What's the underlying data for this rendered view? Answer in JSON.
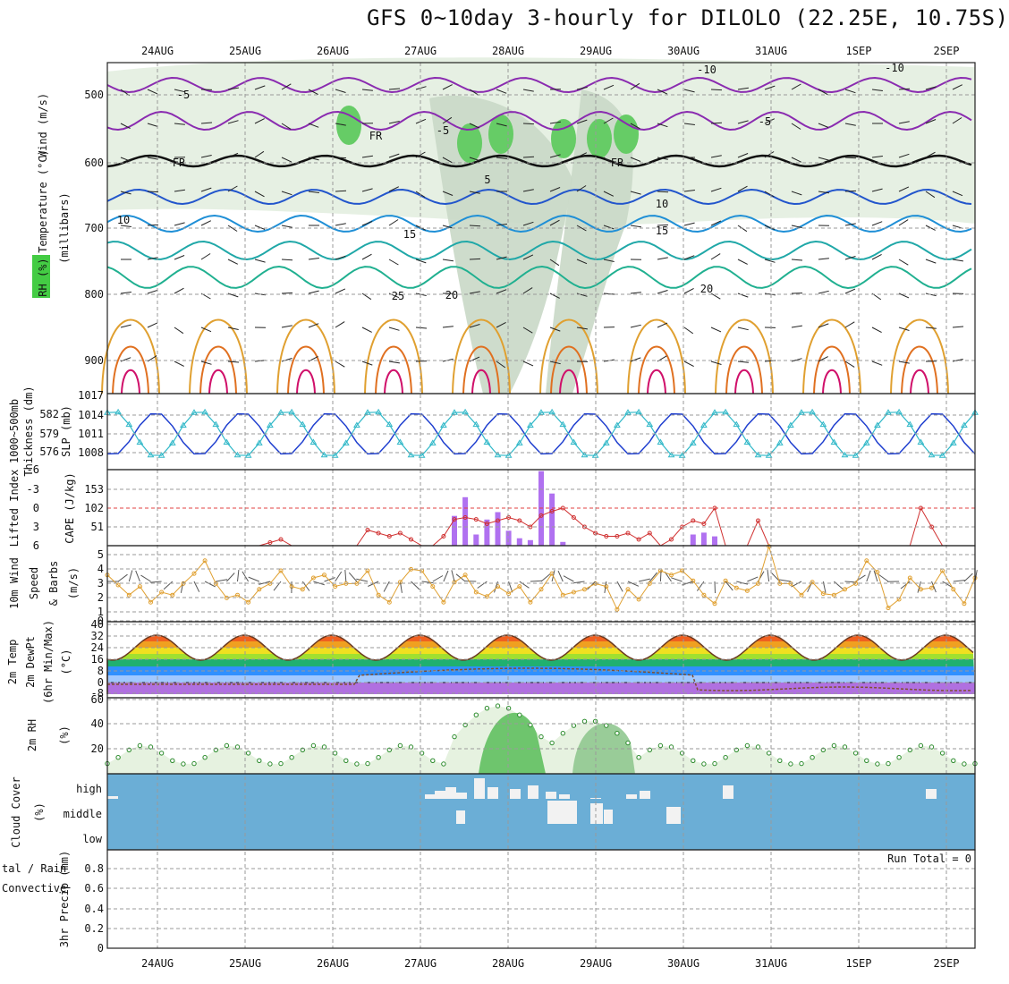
{
  "title": "GFS 0~10day 3-hourly for DILOLO (22.25E, 10.75S)",
  "dates": [
    "24AUG",
    "25AUG",
    "26AUG",
    "27AUG",
    "28AUG",
    "29AUG",
    "30AUG",
    "31AUG",
    "1SEP",
    "2SEP"
  ],
  "colors": {
    "grid": "#9a9a9a",
    "cloud": "#6baed6",
    "rh_fill": "#e6f2e0",
    "rh_green": "#66cc66"
  },
  "panels": {
    "pressure": {
      "labels": [
        "Wind (m/s)",
        "Temperature (°C)",
        "RH (%)",
        "(millibars)"
      ],
      "ticks": [
        "500",
        "600",
        "700",
        "800",
        "900"
      ],
      "contour_labels": [
        "-10",
        "-5",
        "-5",
        "-5",
        "-10",
        "5",
        "10",
        "10",
        "15",
        "15",
        "20",
        "20",
        "25",
        "FR",
        "FR",
        "FR"
      ]
    },
    "slp": {
      "left_labels": [
        "1000~500mb",
        "Thickness (dm)"
      ],
      "right_label": "SLP (mb)",
      "left_ticks": [
        "582",
        "579",
        "576"
      ],
      "right_ticks": [
        "1017",
        "1014",
        "1011",
        "1008"
      ]
    },
    "cape": {
      "left_label": "Lifted Index",
      "right_label": "CAPE (J/kg)",
      "li_ticks": [
        "-6",
        "-3",
        "0",
        "3",
        "6"
      ],
      "cape_ticks": [
        "153",
        "102",
        "51"
      ]
    },
    "wind": {
      "labels": [
        "10m Wind",
        "Speed",
        "& Barbs",
        "(m/s)"
      ],
      "ticks": [
        "5",
        "4",
        "3",
        "2",
        "1",
        "0"
      ]
    },
    "temp": {
      "labels": [
        "2m Temp",
        "2m DewPt",
        "(6hr Min/Max)",
        "(°C)"
      ],
      "ticks": [
        "40",
        "32",
        "24",
        "16",
        "8",
        "0",
        "-8"
      ]
    },
    "rh": {
      "labels": [
        "2m RH",
        "(%)"
      ],
      "ticks": [
        "60",
        "40",
        "20"
      ]
    },
    "cloud": {
      "labels": [
        "Cloud Cover",
        "(%)"
      ],
      "levels": [
        "high",
        "middle",
        "low"
      ]
    },
    "precip": {
      "labels": [
        "tal / Rain",
        "Convective",
        "3hr Precip (mm)"
      ],
      "ticks": [
        "0.8",
        "0.6",
        "0.4",
        "0.2",
        "0"
      ],
      "run_total": "Run Total = 0"
    }
  },
  "chart_data": {
    "type": "line",
    "x_dates": [
      "24AUG",
      "25AUG",
      "26AUG",
      "27AUG",
      "28AUG",
      "29AUG",
      "30AUG",
      "31AUG",
      "1SEP",
      "2SEP"
    ],
    "cape_jkg": [
      0,
      0,
      0,
      0,
      0,
      0,
      0,
      0,
      0,
      0,
      0,
      0,
      0,
      0,
      0,
      0,
      0,
      0,
      0,
      0,
      0,
      0,
      0,
      0,
      0,
      0,
      0,
      0,
      0,
      0,
      0,
      0,
      80,
      130,
      30,
      70,
      90,
      40,
      20,
      15,
      200,
      140,
      10,
      0,
      0,
      0,
      0,
      0,
      0,
      0,
      0,
      0,
      0,
      0,
      30,
      35,
      25,
      0,
      0,
      0,
      0,
      0,
      0,
      0,
      0,
      0,
      0,
      0,
      0,
      0,
      0,
      0,
      0,
      0,
      0,
      0,
      0,
      0,
      0,
      0,
      0
    ],
    "lifted_index": [
      6,
      6,
      6,
      6,
      6,
      6,
      6,
      6,
      6,
      6,
      6,
      6,
      6,
      6,
      6,
      5.5,
      5,
      6,
      6,
      6,
      6,
      6,
      6,
      6,
      3.5,
      4,
      4.5,
      4,
      5,
      6,
      6,
      4.5,
      1.8,
      1.5,
      1.8,
      2.5,
      2,
      1.5,
      2,
      3,
      1.2,
      0.5,
      0,
      1.5,
      3,
      4,
      4.5,
      4.5,
      4,
      5,
      4,
      6,
      5,
      3,
      2,
      2.5,
      0,
      6,
      6,
      6,
      2,
      6,
      6,
      6,
      6,
      6,
      6,
      6,
      6,
      6,
      6,
      6,
      6,
      6,
      6,
      0,
      3,
      6,
      6,
      6,
      6
    ],
    "wind_speed_ms": [
      3.2,
      2.5,
      1.8,
      2.4,
      1.3,
      2,
      1.8,
      2.6,
      3.3,
      4.2,
      2.6,
      1.6,
      1.8,
      1.3,
      2.2,
      2.6,
      3.5,
      2.4,
      2.2,
      3,
      3.2,
      2.4,
      2.6,
      2.6,
      3.5,
      1.8,
      1.3,
      2.7,
      3.6,
      3.5,
      2.4,
      1.3,
      2.7,
      3.2,
      2,
      1.7,
      2.4,
      1.9,
      2.4,
      1.3,
      2.2,
      3.3,
      1.8,
      2,
      2.2,
      2.6,
      2.4,
      0.8,
      2.2,
      1.5,
      2.6,
      3.5,
      3.2,
      3.5,
      2.8,
      1.8,
      1.2,
      2.8,
      2.3,
      2.1,
      2.6,
      5.2,
      2.6,
      2.6,
      1.8,
      2.7,
      1.9,
      1.8,
      2.2,
      2.6,
      4.2,
      3.4,
      0.9,
      1.5,
      3,
      2.2,
      2.3,
      3.5,
      2.2,
      1.2,
      3
    ]
  }
}
